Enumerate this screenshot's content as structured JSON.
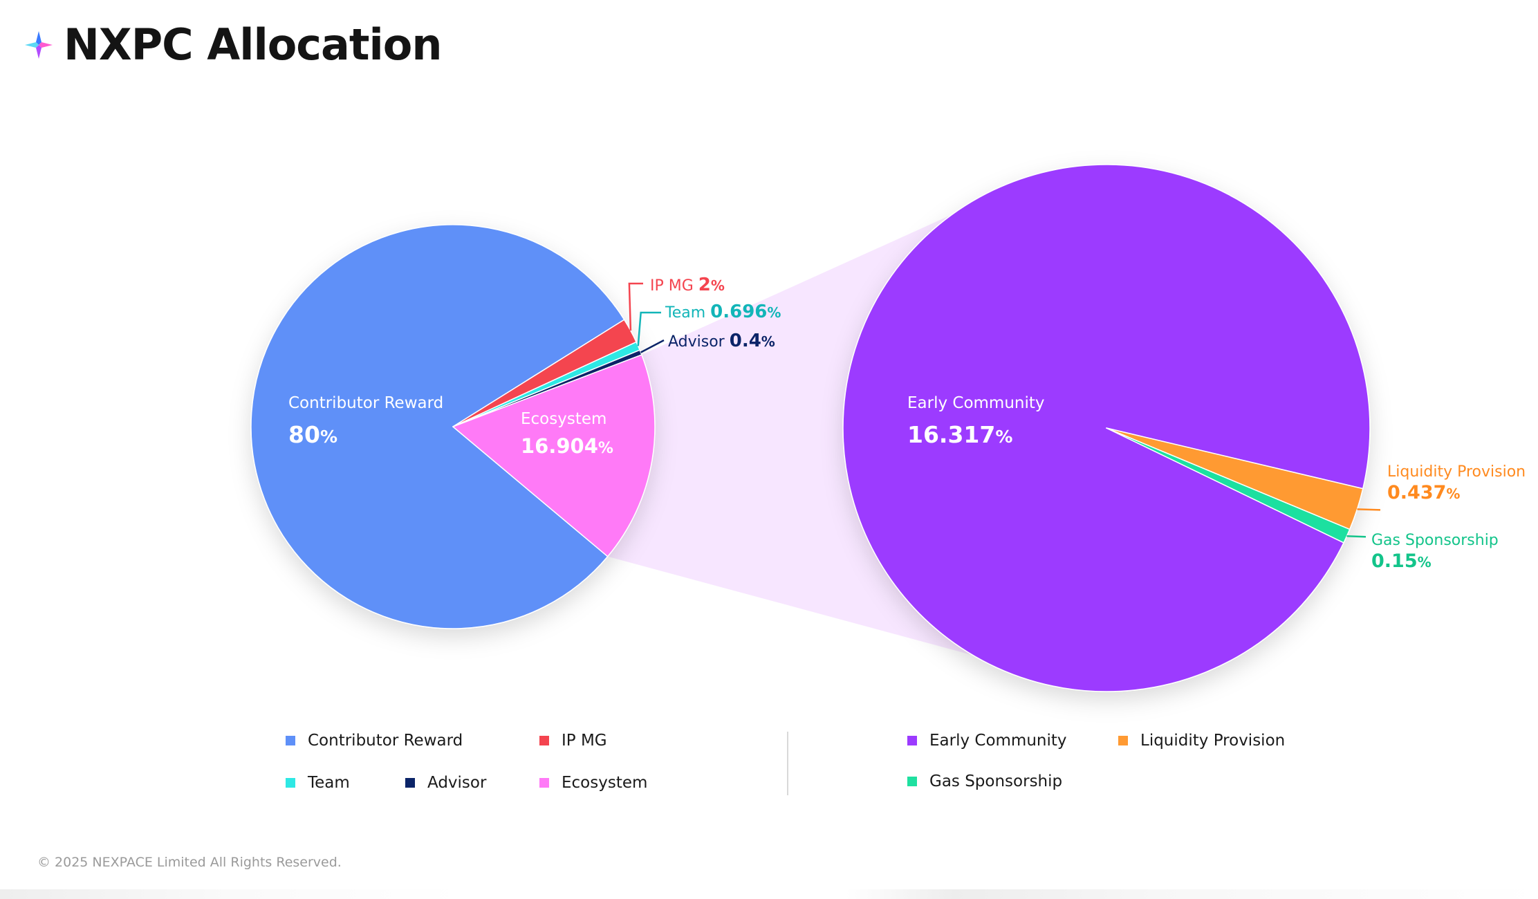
{
  "page": {
    "title": "NXPC Allocation",
    "footer": "© 2025 NEXPACE Limited All Rights Reserved."
  },
  "chart_data": [
    {
      "type": "pie",
      "name": "main",
      "slices": [
        {
          "key": "contributor",
          "label": "Contributor Reward",
          "value": 80,
          "display": "80",
          "unit": "%",
          "color": "#5E90F8"
        },
        {
          "key": "ipmg",
          "label": "IP MG",
          "value": 2,
          "display": "2",
          "unit": "%",
          "color": "#F4444F"
        },
        {
          "key": "team",
          "label": "Team",
          "value": 0.696,
          "display": "0.696",
          "unit": "%",
          "color": "#2EE8E4"
        },
        {
          "key": "advisor",
          "label": "Advisor",
          "value": 0.4,
          "display": "0.4",
          "unit": "%",
          "color": "#0B2468"
        },
        {
          "key": "ecosystem",
          "label": "Ecosystem",
          "value": 16.904,
          "display": "16.904",
          "unit": "%",
          "color": "#FF7AF7"
        }
      ],
      "callout_colors": {
        "ipmg": "#F4444F",
        "team": "#12B5B8",
        "advisor": "#0B2468"
      }
    },
    {
      "type": "pie",
      "name": "ecosystem-breakdown",
      "slices": [
        {
          "key": "early",
          "label": "Early Community",
          "value": 16.317,
          "display": "16.317",
          "unit": "%",
          "color": "#9C3BFF"
        },
        {
          "key": "liquidity",
          "label": "Liquidity Provision",
          "value": 0.437,
          "display": "0.437",
          "unit": "%",
          "color": "#FF9A33"
        },
        {
          "key": "gas",
          "label": "Gas Sponsorship",
          "value": 0.15,
          "display": "0.15",
          "unit": "%",
          "color": "#1FE0A0"
        }
      ],
      "callout_colors": {
        "liquidity": "#FF8A1F",
        "gas": "#13C48A"
      }
    }
  ],
  "legend": {
    "left": [
      {
        "label": "Contributor Reward",
        "color": "#5E90F8"
      },
      {
        "label": "IP MG",
        "color": "#F4444F"
      },
      {
        "label": "Team",
        "color": "#2EE8E4"
      },
      {
        "label": "Advisor",
        "color": "#0B2468"
      },
      {
        "label": "Ecosystem",
        "color": "#FF7AF7"
      }
    ],
    "right": [
      {
        "label": "Early Community",
        "color": "#9C3BFF"
      },
      {
        "label": "Liquidity Provision",
        "color": "#FF9A33"
      },
      {
        "label": "Gas Sponsorship",
        "color": "#1FE0A0"
      }
    ]
  },
  "colors": {
    "connector": "#F7E6FF",
    "logo_top": "#3A7BFF",
    "logo_right": "#FF5BD0",
    "logo_bottom": "#B24CFF",
    "logo_left": "#5BD8F5"
  }
}
